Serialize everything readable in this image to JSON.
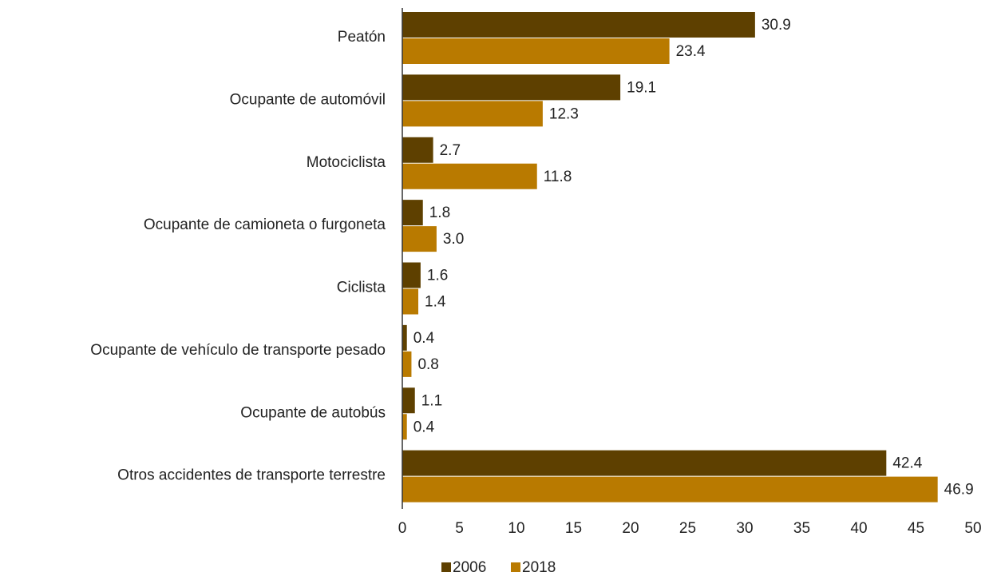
{
  "chart_data": {
    "type": "hbar",
    "categories": [
      "Peatón",
      "Ocupante de automóvil",
      "Motociclista",
      "Ocupante de camioneta o furgoneta",
      "Ciclista",
      "Ocupante de vehículo de transporte pesado",
      "Ocupante de autobús",
      "Otros accidentes de transporte terrestre"
    ],
    "series": [
      {
        "name": "2006",
        "color": "#5e4000",
        "values": [
          30.9,
          19.1,
          2.7,
          1.8,
          1.6,
          0.4,
          1.1,
          42.4
        ],
        "value_labels": [
          "30.9",
          "19.1",
          "2.7",
          "1.8",
          "1.6",
          "0.4",
          "1.1",
          "42.4"
        ]
      },
      {
        "name": "2018",
        "color": "#b97a00",
        "values": [
          23.4,
          12.3,
          11.8,
          3.0,
          1.4,
          0.8,
          0.4,
          46.9
        ],
        "value_labels": [
          "23.4",
          "12.3",
          "11.8",
          "3.0",
          "1.4",
          "0.8",
          "0.4",
          "46.9"
        ]
      }
    ],
    "xlim": [
      0,
      50
    ],
    "xticks": [
      0,
      5,
      10,
      15,
      20,
      25,
      30,
      35,
      40,
      45,
      50
    ],
    "grid": false,
    "legend": "bottom"
  }
}
